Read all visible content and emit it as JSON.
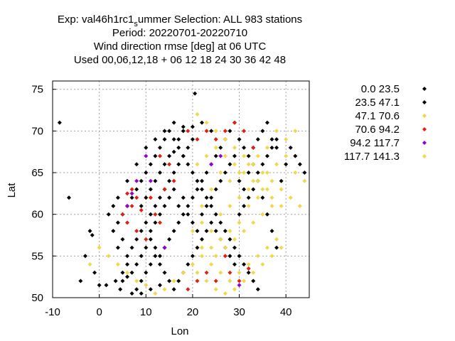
{
  "chart_data": {
    "type": "scatter",
    "title_lines": [
      "Period: 20220701-20220710",
      "Wind direction rmse [deg] at  06 UTC",
      "Used  00,06,12,18  + 06 12 18 24 30 36 42 48"
    ],
    "title_line1": {
      "prefix": "Exp: val46h1rc1",
      "subscript": "s",
      "suffix": "ummer   Selection: ALL    983 stations"
    },
    "xlabel": "Lon",
    "ylabel": "Lat",
    "xlim": [
      -10,
      45
    ],
    "ylim": [
      50,
      76
    ],
    "xticks": [
      -10,
      0,
      10,
      20,
      30,
      40
    ],
    "yticks": [
      50,
      55,
      60,
      65,
      70,
      75
    ],
    "grid": true,
    "legend_position": "right",
    "legend": [
      {
        "label": "0.0 23.5",
        "color": "#000000"
      },
      {
        "label": "23.5 47.1",
        "color": "#000000"
      },
      {
        "label": "47.1 70.6",
        "color": "#f0d84a"
      },
      {
        "label": "70.6 94.2",
        "color": "#e02010"
      },
      {
        "label": "94.2 117.7",
        "color": "#9400d3"
      },
      {
        "label": "117.7 141.3",
        "color": "#f0d84a"
      }
    ],
    "series": [
      {
        "name": "0.0 23.5",
        "points": [
          [
            20.5,
            74.5
          ],
          [
            -8.5,
            71
          ],
          [
            -6.5,
            62
          ],
          [
            -2,
            58
          ],
          [
            -1.5,
            57.5
          ],
          [
            -3,
            55
          ],
          [
            -4,
            52
          ],
          [
            -1,
            53
          ],
          [
            0,
            51.5
          ],
          [
            1.5,
            51.5
          ],
          [
            3.5,
            52
          ],
          [
            4.5,
            51
          ],
          [
            5,
            52
          ],
          [
            6,
            52.5
          ],
          [
            7,
            53
          ],
          [
            8,
            54
          ],
          [
            9,
            55
          ],
          [
            10,
            56
          ],
          [
            11,
            57
          ],
          [
            12,
            56
          ],
          [
            13,
            55
          ],
          [
            14,
            56
          ],
          [
            15,
            57
          ],
          [
            16,
            58
          ],
          [
            17,
            59
          ],
          [
            18,
            60
          ],
          [
            19,
            61
          ],
          [
            20,
            62
          ],
          [
            21,
            63
          ],
          [
            22,
            64
          ],
          [
            23,
            65
          ],
          [
            24,
            66
          ],
          [
            25,
            67
          ],
          [
            26,
            68
          ],
          [
            27,
            69
          ],
          [
            28,
            70
          ],
          [
            29,
            71
          ],
          [
            30,
            69
          ],
          [
            31,
            68
          ],
          [
            32,
            67
          ],
          [
            33,
            66
          ],
          [
            34,
            64
          ],
          [
            35,
            62
          ],
          [
            36,
            60
          ],
          [
            37,
            58
          ],
          [
            38,
            56
          ],
          [
            39,
            64
          ],
          [
            40,
            66
          ],
          [
            41,
            68
          ],
          [
            42,
            67
          ],
          [
            43,
            66
          ],
          [
            44,
            65
          ],
          [
            5,
            60
          ],
          [
            6,
            61
          ],
          [
            7,
            62
          ],
          [
            8,
            63
          ],
          [
            9,
            64
          ],
          [
            10,
            65
          ],
          [
            11,
            66
          ],
          [
            12,
            67
          ],
          [
            13,
            68
          ],
          [
            14,
            69
          ],
          [
            15,
            70
          ],
          [
            16,
            69
          ],
          [
            17,
            68
          ],
          [
            18,
            67
          ],
          [
            19,
            66
          ],
          [
            20,
            65
          ],
          [
            21,
            64
          ],
          [
            22,
            63
          ],
          [
            23,
            62
          ],
          [
            24,
            61
          ],
          [
            25,
            60
          ],
          [
            26,
            59
          ],
          [
            27,
            58
          ],
          [
            28,
            57
          ],
          [
            29,
            56
          ],
          [
            30,
            55
          ],
          [
            31,
            54
          ],
          [
            32,
            53
          ],
          [
            33,
            52
          ],
          [
            34,
            51
          ],
          [
            6,
            55
          ],
          [
            7,
            56
          ],
          [
            8,
            57
          ],
          [
            9,
            58
          ],
          [
            10,
            59
          ],
          [
            11,
            60
          ],
          [
            12,
            61
          ],
          [
            13,
            62
          ],
          [
            14,
            63
          ],
          [
            15,
            64
          ],
          [
            16,
            65
          ],
          [
            17,
            66
          ],
          [
            18,
            67
          ],
          [
            19,
            68
          ],
          [
            20,
            69
          ],
          [
            8,
            51
          ],
          [
            9,
            52
          ],
          [
            10,
            53
          ],
          [
            11,
            54
          ],
          [
            12,
            55
          ],
          [
            13,
            54
          ],
          [
            14,
            53
          ],
          [
            15,
            52
          ],
          [
            16,
            51
          ],
          [
            17,
            52
          ],
          [
            18,
            53
          ],
          [
            19,
            54
          ],
          [
            20,
            55
          ],
          [
            21,
            56
          ],
          [
            22,
            57
          ],
          [
            23,
            58
          ],
          [
            24,
            59
          ],
          [
            25,
            58
          ],
          [
            26,
            57
          ],
          [
            27,
            56
          ],
          [
            28,
            55
          ],
          [
            29,
            54
          ],
          [
            30,
            60
          ],
          [
            31,
            61
          ],
          [
            32,
            62
          ],
          [
            33,
            63
          ],
          [
            34,
            65
          ],
          [
            35,
            66
          ],
          [
            36,
            67
          ],
          [
            37,
            68
          ],
          [
            38,
            69
          ],
          [
            7,
            50.5
          ],
          [
            9,
            50.5
          ],
          [
            11,
            51
          ],
          [
            13,
            51.5
          ],
          [
            5,
            53
          ],
          [
            6,
            54
          ],
          [
            4,
            56
          ],
          [
            5,
            57
          ],
          [
            3,
            58
          ],
          [
            4,
            59
          ],
          [
            2,
            60
          ],
          [
            3,
            61
          ],
          [
            11,
            58
          ],
          [
            12,
            59
          ],
          [
            13,
            60
          ],
          [
            14,
            61
          ],
          [
            15,
            62
          ],
          [
            16,
            63
          ],
          [
            17,
            61
          ],
          [
            18,
            62
          ],
          [
            19,
            60
          ],
          [
            20,
            59
          ],
          [
            21,
            58
          ],
          [
            22,
            60
          ],
          [
            23,
            61
          ],
          [
            24,
            62
          ],
          [
            25,
            63
          ],
          [
            26,
            64
          ],
          [
            27,
            65
          ],
          [
            28,
            66
          ],
          [
            29,
            67
          ],
          [
            30,
            64
          ],
          [
            31,
            63
          ],
          [
            32,
            65
          ],
          [
            33,
            68
          ],
          [
            34,
            69
          ],
          [
            35,
            70
          ],
          [
            36,
            71
          ],
          [
            37,
            69
          ],
          [
            38,
            68
          ],
          [
            24,
            70
          ],
          [
            22,
            71
          ],
          [
            20,
            70.5
          ],
          [
            18,
            70
          ],
          [
            16,
            71
          ],
          [
            14,
            70
          ],
          [
            12,
            69
          ],
          [
            10,
            68
          ],
          [
            8,
            66
          ],
          [
            6,
            64
          ],
          [
            4,
            62
          ],
          [
            9,
            61
          ],
          [
            10,
            62
          ],
          [
            11,
            63
          ],
          [
            12,
            64
          ],
          [
            13,
            65
          ],
          [
            14,
            66
          ],
          [
            15,
            67
          ],
          [
            16,
            67.5
          ],
          [
            17,
            69
          ],
          [
            18,
            70.5
          ]
        ]
      },
      {
        "name": "47.1 70.6",
        "points": [
          [
            21,
            72
          ],
          [
            23,
            71
          ],
          [
            25,
            70
          ],
          [
            27,
            69
          ],
          [
            29,
            68
          ],
          [
            31,
            67
          ],
          [
            33,
            66
          ],
          [
            35,
            65
          ],
          [
            37,
            64
          ],
          [
            39,
            63
          ],
          [
            41,
            62
          ],
          [
            43,
            61
          ],
          [
            44,
            64
          ],
          [
            42,
            65
          ],
          [
            40,
            67
          ],
          [
            38,
            66
          ],
          [
            36,
            63
          ],
          [
            34,
            62
          ],
          [
            32,
            61
          ],
          [
            30,
            59
          ],
          [
            28,
            58
          ],
          [
            26,
            57
          ],
          [
            24,
            56
          ],
          [
            22,
            55
          ],
          [
            20,
            54
          ],
          [
            18,
            53
          ],
          [
            16,
            52
          ],
          [
            14,
            51
          ],
          [
            12,
            50.5
          ],
          [
            10,
            51.5
          ],
          [
            8,
            52
          ],
          [
            6,
            53
          ],
          [
            4,
            54
          ],
          [
            2,
            55
          ],
          [
            0,
            56
          ],
          [
            -2,
            54
          ],
          [
            21,
            53
          ],
          [
            23,
            52
          ],
          [
            25,
            51
          ],
          [
            27,
            50.5
          ],
          [
            29,
            51
          ],
          [
            31,
            52
          ],
          [
            33,
            53
          ],
          [
            35,
            54
          ],
          [
            37,
            55
          ],
          [
            39,
            56
          ],
          [
            22,
            59
          ],
          [
            24,
            58
          ],
          [
            26,
            60
          ],
          [
            28,
            61
          ],
          [
            30,
            62
          ],
          [
            32,
            63
          ],
          [
            34,
            64
          ],
          [
            36,
            65
          ],
          [
            21,
            66
          ],
          [
            23,
            67
          ],
          [
            25,
            68
          ],
          [
            27,
            67
          ],
          [
            29,
            66
          ],
          [
            31,
            65
          ],
          [
            33,
            64
          ],
          [
            35,
            63
          ],
          [
            37,
            62
          ],
          [
            39,
            61
          ],
          [
            20,
            58
          ],
          [
            22,
            56
          ],
          [
            24,
            54
          ],
          [
            26,
            53
          ],
          [
            28,
            52
          ],
          [
            30,
            53
          ],
          [
            32,
            54
          ],
          [
            34,
            55
          ],
          [
            36,
            56
          ],
          [
            38,
            57
          ],
          [
            25,
            55
          ],
          [
            27,
            56
          ],
          [
            29,
            57
          ],
          [
            31,
            58
          ],
          [
            33,
            59
          ],
          [
            35,
            60
          ],
          [
            37,
            61
          ],
          [
            22,
            61
          ],
          [
            24,
            63
          ],
          [
            26,
            65
          ],
          [
            28,
            64
          ],
          [
            30,
            65
          ],
          [
            32,
            66
          ],
          [
            34,
            67
          ],
          [
            36,
            68
          ],
          [
            38,
            70
          ],
          [
            40,
            69
          ],
          [
            42,
            70
          ]
        ]
      },
      {
        "name": "70.6 94.2",
        "points": [
          [
            5,
            60
          ],
          [
            6,
            59
          ],
          [
            7,
            61
          ],
          [
            8,
            62
          ],
          [
            6,
            62.5
          ],
          [
            7,
            63
          ],
          [
            11,
            62
          ],
          [
            12,
            60
          ],
          [
            13,
            59
          ],
          [
            9,
            60.5
          ],
          [
            10,
            57
          ],
          [
            8,
            58
          ],
          [
            14,
            63
          ],
          [
            15,
            66
          ],
          [
            16,
            64
          ],
          [
            13,
            67
          ],
          [
            19,
            70
          ],
          [
            21,
            69
          ],
          [
            23,
            70
          ],
          [
            25,
            69
          ],
          [
            27,
            70
          ],
          [
            29,
            71
          ],
          [
            31,
            70
          ],
          [
            33,
            68
          ],
          [
            27,
            55
          ],
          [
            28,
            53
          ],
          [
            30,
            52
          ],
          [
            32,
            53.5
          ],
          [
            25,
            52
          ],
          [
            23,
            53
          ],
          [
            21,
            52
          ],
          [
            19,
            51
          ]
        ]
      },
      {
        "name": "94.2 117.7",
        "points": [
          [
            10,
            67
          ],
          [
            11,
            64
          ],
          [
            6,
            61
          ],
          [
            7,
            62.5
          ],
          [
            8,
            64
          ],
          [
            14,
            56
          ],
          [
            30,
            51.5
          ],
          [
            24,
            66
          ],
          [
            26,
            67
          ]
        ]
      }
    ]
  }
}
